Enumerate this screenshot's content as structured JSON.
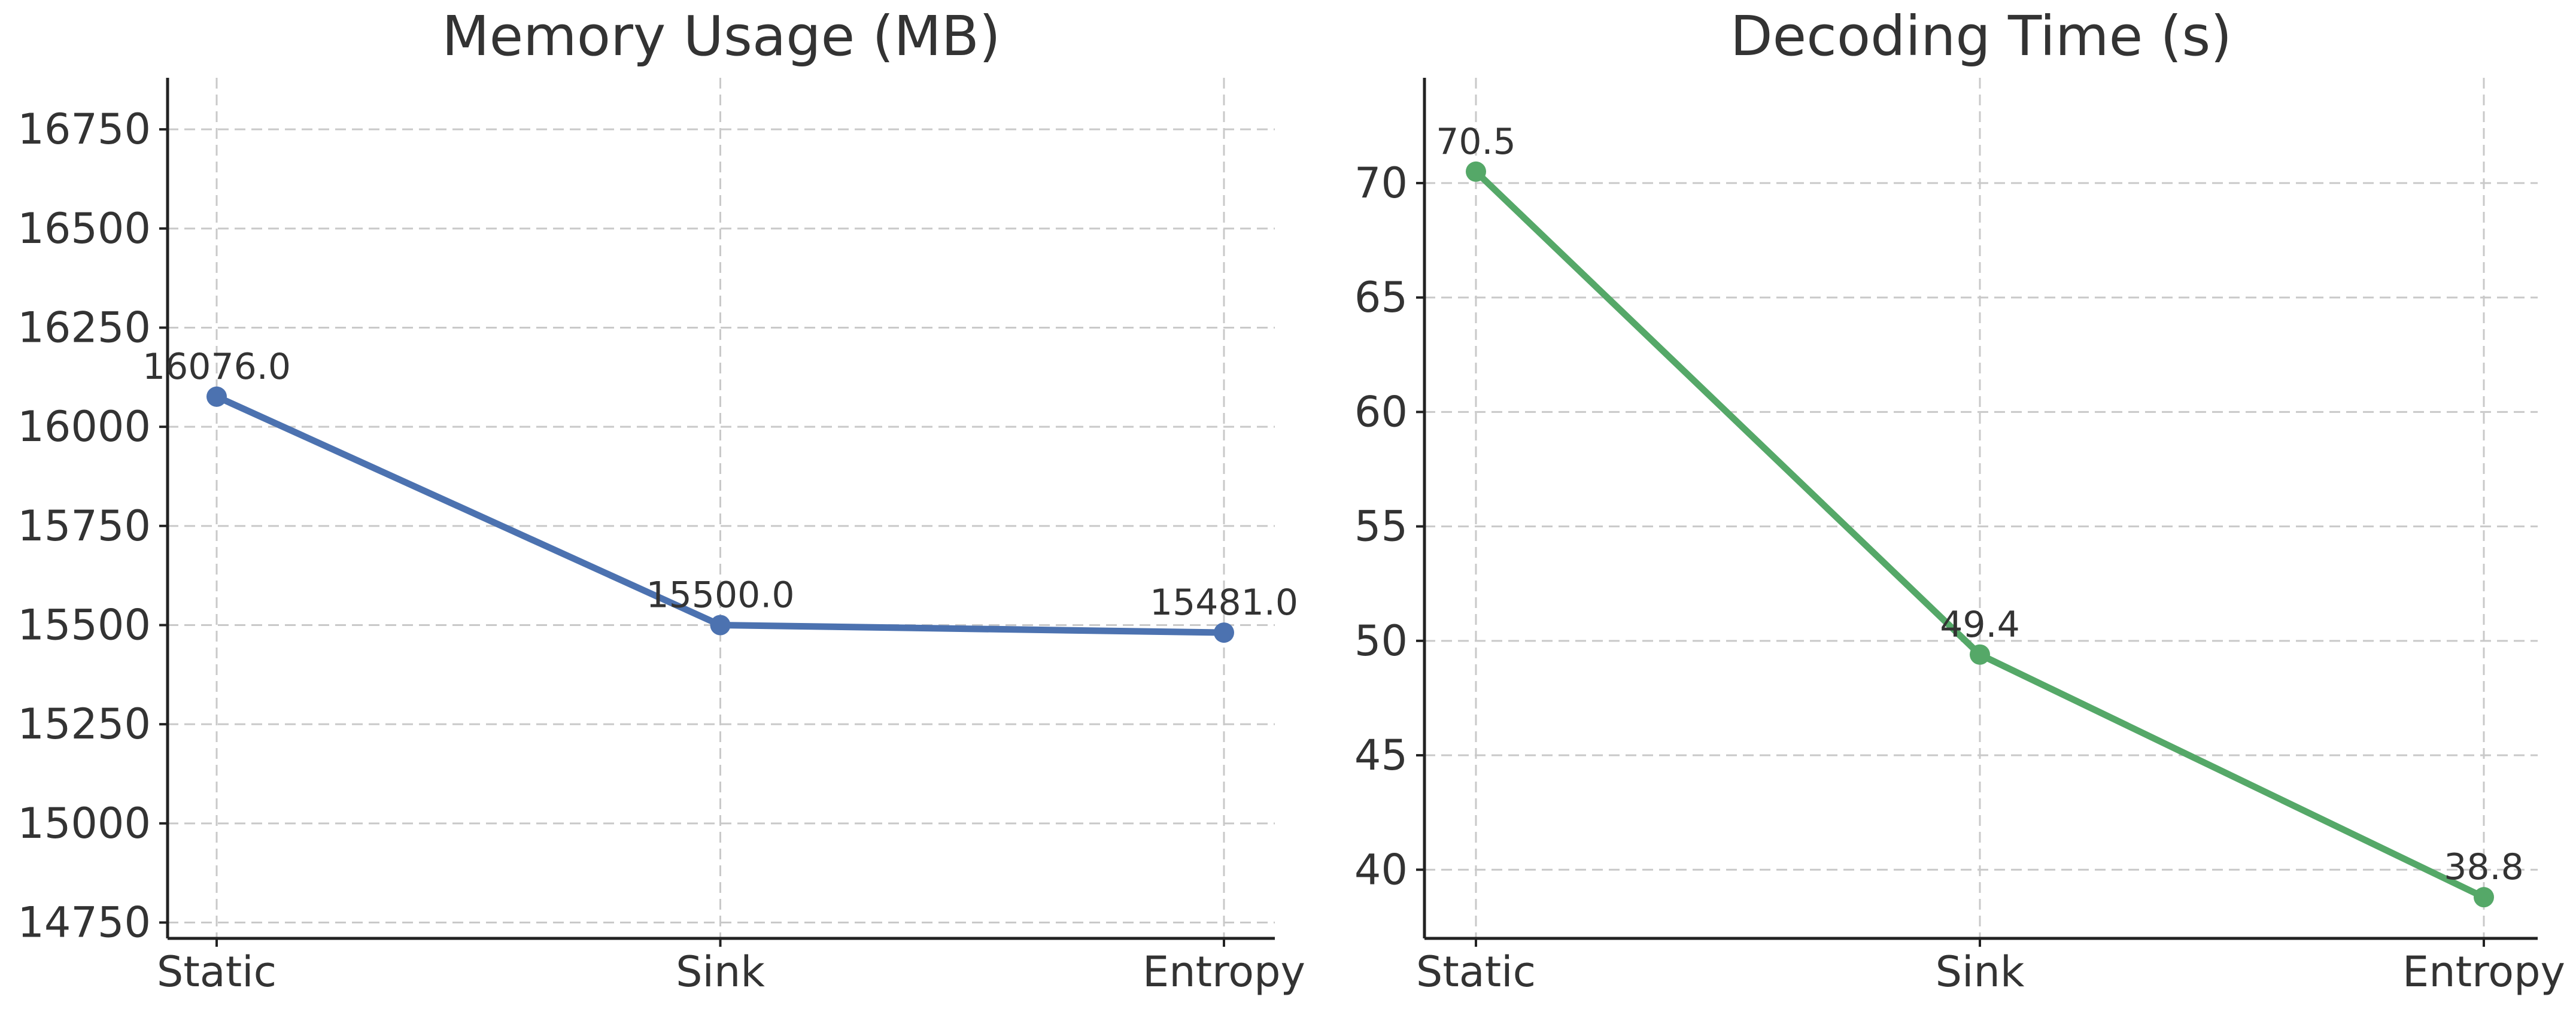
{
  "chart_data": [
    {
      "type": "line",
      "title": "Memory Usage (MB)",
      "xlabel": "",
      "ylabel": "",
      "categories": [
        "Static",
        "Sink",
        "Entropy"
      ],
      "values": [
        16076.0,
        15500.0,
        15481.0
      ],
      "point_labels": [
        "16076.0",
        "15500.0",
        "15481.0"
      ],
      "yticks": [
        14750,
        15000,
        15250,
        15500,
        15750,
        16000,
        16250,
        16500,
        16750
      ],
      "ylim": [
        14710,
        16880
      ],
      "color": "#4c72b0",
      "grid": true,
      "legend": "none"
    },
    {
      "type": "line",
      "title": "Decoding Time (s)",
      "xlabel": "",
      "ylabel": "",
      "categories": [
        "Static",
        "Sink",
        "Entropy"
      ],
      "values": [
        70.5,
        49.4,
        38.8
      ],
      "point_labels": [
        "70.5",
        "49.4",
        "38.8"
      ],
      "yticks": [
        40,
        45,
        50,
        55,
        60,
        65,
        70
      ],
      "ylim": [
        37.0,
        74.6
      ],
      "color": "#55a868",
      "grid": true,
      "legend": "none"
    }
  ]
}
